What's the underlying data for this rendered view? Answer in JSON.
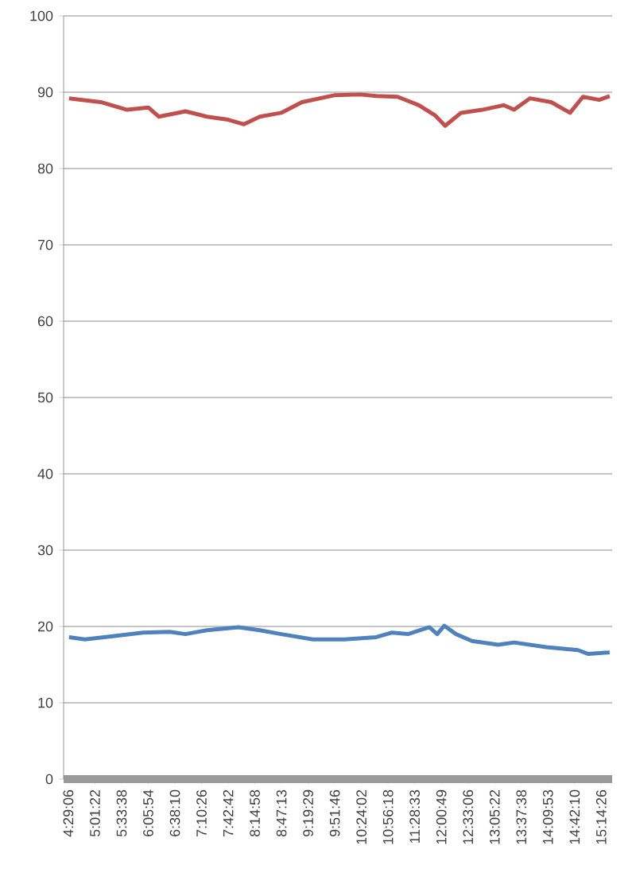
{
  "chart_data": {
    "type": "line",
    "grid": "y",
    "marker": "none",
    "line_style": "solid",
    "xlim": [
      4.39,
      15.46
    ],
    "xticks": [
      {
        "value": 4.485,
        "label": "4:29:06"
      },
      {
        "value": 5.0228,
        "label": "5:01:22"
      },
      {
        "value": 5.5606,
        "label": "5:33:38"
      },
      {
        "value": 6.0983,
        "label": "6:05:54"
      },
      {
        "value": 6.6361,
        "label": "6:38:10"
      },
      {
        "value": 7.1739,
        "label": "7:10:26"
      },
      {
        "value": 7.7117,
        "label": "7:42:42"
      },
      {
        "value": 8.2494,
        "label": "8:14:58"
      },
      {
        "value": 8.7869,
        "label": "8:47:13"
      },
      {
        "value": 9.3247,
        "label": "9:19:29"
      },
      {
        "value": 9.8628,
        "label": "9:51:46"
      },
      {
        "value": 10.4006,
        "label": "10:24:02"
      },
      {
        "value": 10.9383,
        "label": "10:56:18"
      },
      {
        "value": 11.4758,
        "label": "11:28:33"
      },
      {
        "value": 12.0136,
        "label": "12:00:49"
      },
      {
        "value": 12.5517,
        "label": "12:33:06"
      },
      {
        "value": 13.0894,
        "label": "13:05:22"
      },
      {
        "value": 13.6272,
        "label": "13:37:38"
      },
      {
        "value": 14.1647,
        "label": "14:09:53"
      },
      {
        "value": 14.7028,
        "label": "14:42:10"
      },
      {
        "value": 15.2406,
        "label": "15:14:26"
      }
    ],
    "ylim": [
      0,
      100
    ],
    "yticks": [
      0,
      10,
      20,
      30,
      40,
      50,
      60,
      70,
      80,
      90,
      100
    ],
    "series": [
      {
        "color": "#c0504d",
        "x": [
          4.5,
          5.14,
          5.67,
          6.1,
          6.31,
          6.85,
          7.28,
          7.71,
          8.03,
          8.35,
          8.78,
          9.2,
          9.85,
          10.38,
          10.7,
          11.13,
          11.56,
          11.88,
          12.09,
          12.41,
          12.84,
          13.27,
          13.48,
          13.8,
          14.23,
          14.61,
          14.87,
          15.2,
          15.41
        ],
        "values": [
          89.2,
          88.7,
          87.7,
          88.0,
          86.8,
          87.5,
          86.8,
          86.4,
          85.8,
          86.8,
          87.3,
          88.7,
          89.6,
          89.7,
          89.5,
          89.4,
          88.3,
          87.0,
          85.6,
          87.3,
          87.7,
          88.3,
          87.7,
          89.2,
          88.7,
          87.3,
          89.4,
          89.0,
          89.5
        ]
      },
      {
        "color": "#4f81bd",
        "x": [
          4.5,
          4.82,
          5.35,
          5.99,
          6.53,
          6.85,
          7.28,
          7.92,
          8.35,
          8.78,
          9.42,
          10.06,
          10.7,
          11.02,
          11.34,
          11.77,
          11.93,
          12.07,
          12.31,
          12.63,
          13.16,
          13.48,
          14.13,
          14.77,
          14.98,
          15.41
        ],
        "values": [
          18.6,
          18.3,
          18.7,
          19.2,
          19.3,
          19.0,
          19.5,
          19.9,
          19.5,
          19.0,
          18.3,
          18.3,
          18.6,
          19.2,
          19.0,
          19.9,
          19.0,
          20.1,
          19.0,
          18.1,
          17.6,
          17.9,
          17.3,
          16.9,
          16.4,
          16.6
        ]
      }
    ]
  }
}
